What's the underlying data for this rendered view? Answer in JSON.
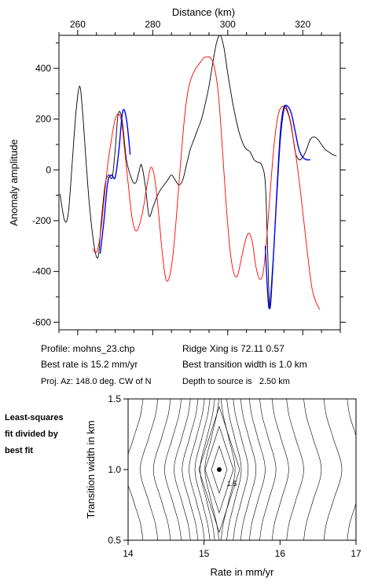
{
  "chart_data": [
    {
      "type": "line",
      "xlabel": "Distance (km)",
      "ylabel": "Anomaly amplitude",
      "xlim": [
        255,
        330
      ],
      "ylim": [
        -630,
        530
      ],
      "xticks": [
        "260",
        "280",
        "300",
        "320"
      ],
      "xtick_values": [
        260,
        280,
        300,
        320
      ],
      "yticks": [
        "400",
        "200",
        "0",
        "-200",
        "-400",
        "-600"
      ],
      "ytick_values": [
        400,
        200,
        0,
        -200,
        -400,
        -600
      ],
      "series": [
        {
          "color": "#000000",
          "x": [
            255.3,
            256.5,
            257.5,
            258.5,
            259.5,
            260.5,
            261.3,
            262.2,
            263.2,
            264.5,
            265.5,
            266.3,
            267.3,
            268.2,
            269.2,
            270.0,
            270.8,
            271.8,
            273.0,
            274.5,
            275.5,
            276.3,
            277.0,
            278.0,
            279.0,
            280.0,
            281.0,
            282.0,
            283.0,
            284.0,
            285.0,
            286.0,
            287.0,
            288.0,
            289.0,
            290.0,
            291.0,
            292.0,
            293.0,
            294.0,
            295.0,
            296.0,
            297.0,
            298.0,
            299.0,
            300.0,
            301.5,
            303.0,
            304.5,
            306.0,
            307.0,
            308.0,
            309.0,
            310.0,
            310.6,
            311.2,
            312.0,
            313.0,
            314.0,
            315.0,
            316.0,
            317.0,
            318.0,
            319.0,
            320.0,
            321.0,
            322.0,
            323.0,
            324.0,
            325.0,
            326.0,
            327.0,
            328.0,
            329.0
          ],
          "values": [
            -95,
            -200,
            -170,
            20,
            220,
            330,
            230,
            40,
            -150,
            -310,
            -340,
            -200,
            -60,
            -20,
            -30,
            80,
            220,
            200,
            40,
            -40,
            -50,
            -10,
            20,
            -60,
            -180,
            -150,
            -110,
            -80,
            -60,
            -40,
            -20,
            -40,
            -60,
            -40,
            20,
            80,
            120,
            160,
            200,
            260,
            330,
            420,
            500,
            530,
            480,
            380,
            250,
            150,
            90,
            70,
            40,
            30,
            20,
            -50,
            -300,
            -545,
            -400,
            -100,
            150,
            250,
            230,
            170,
            70,
            40,
            50,
            80,
            120,
            130,
            120,
            100,
            80,
            70,
            60,
            55
          ]
        },
        {
          "color": "#ff0000",
          "x": [
            264.0,
            265.0,
            266.0,
            267.0,
            268.0,
            269.0,
            270.0,
            271.0,
            271.8,
            272.5,
            273.5,
            274.5,
            275.5,
            276.5,
            277.5,
            278.5,
            279.5,
            280.5,
            281.5,
            282.5,
            283.5,
            284.5,
            285.5,
            286.5,
            287.5,
            288.5,
            289.5,
            290.5,
            291.5,
            292.5,
            293.5,
            294.5,
            295.5,
            296.5,
            297.5,
            298.5,
            299.5,
            300.5,
            301.5,
            302.5,
            303.5,
            304.5,
            305.5,
            306.5,
            307.5,
            308.5,
            309.5,
            310.5,
            311.5,
            312.5,
            313.5,
            314.5,
            315.5,
            316.5,
            317.5,
            318.5,
            319.5,
            320.5,
            321.5,
            322.5,
            323.5,
            324.5
          ],
          "values": [
            -310,
            -325,
            -260,
            -120,
            20,
            120,
            200,
            220,
            180,
            80,
            -60,
            -190,
            -240,
            -215,
            -150,
            -60,
            10,
            -30,
            -160,
            -320,
            -430,
            -420,
            -320,
            -150,
            40,
            210,
            320,
            370,
            400,
            420,
            440,
            445,
            440,
            400,
            300,
            100,
            -120,
            -300,
            -400,
            -420,
            -360,
            -290,
            -250,
            -280,
            -380,
            -430,
            -400,
            -250,
            -50,
            120,
            220,
            250,
            240,
            200,
            120,
            20,
            -100,
            -230,
            -360,
            -470,
            -520,
            -550
          ]
        },
        {
          "color": "#0000ff",
          "x": [
            266.0,
            267.0,
            268.0,
            269.0,
            270.0,
            271.0,
            272.0,
            273.0,
            274.0,
            310.0,
            311.0,
            312.0,
            313.0,
            314.0,
            315.0,
            316.0,
            317.0,
            318.0,
            319.0,
            320.0,
            321.0,
            322.0
          ],
          "values": [
            -330,
            -200,
            -50,
            -20,
            -30,
            80,
            230,
            200,
            60,
            -300,
            -545,
            -380,
            -120,
            120,
            240,
            250,
            220,
            150,
            80,
            50,
            40,
            40
          ]
        }
      ]
    },
    {
      "type": "heatmap",
      "xlabel": "Rate in mm/yr",
      "ylabel": "Transition width in km",
      "xlim": [
        14,
        17
      ],
      "ylim": [
        0.5,
        1.5
      ],
      "xticks": [
        "14",
        "15",
        "16",
        "17"
      ],
      "xtick_values": [
        14,
        15,
        16,
        17
      ],
      "yticks": [
        "1.5",
        "1.0",
        "0.5"
      ],
      "ytick_values": [
        1.5,
        1.0,
        0.5
      ],
      "best_fit": {
        "x": 15.2,
        "y": 1.0
      },
      "contour_label": "1.5",
      "contour_label_at": {
        "x": 15.3,
        "y": 0.9
      }
    }
  ],
  "info": {
    "profile": "Profile: mohns_23.chp",
    "best_rate": "Best rate is 15.2 mm/yr",
    "proj_az": "Proj. Az: 148.0 deg. CW of N",
    "ridge_xing": "Ridge Xing is 72.11 0.57",
    "best_transition": "Best transition width is 1.0 km",
    "depth": "Depth to source is   2.50 km"
  },
  "side_note": [
    "Least-squares",
    "fit divided by",
    "best fit"
  ]
}
